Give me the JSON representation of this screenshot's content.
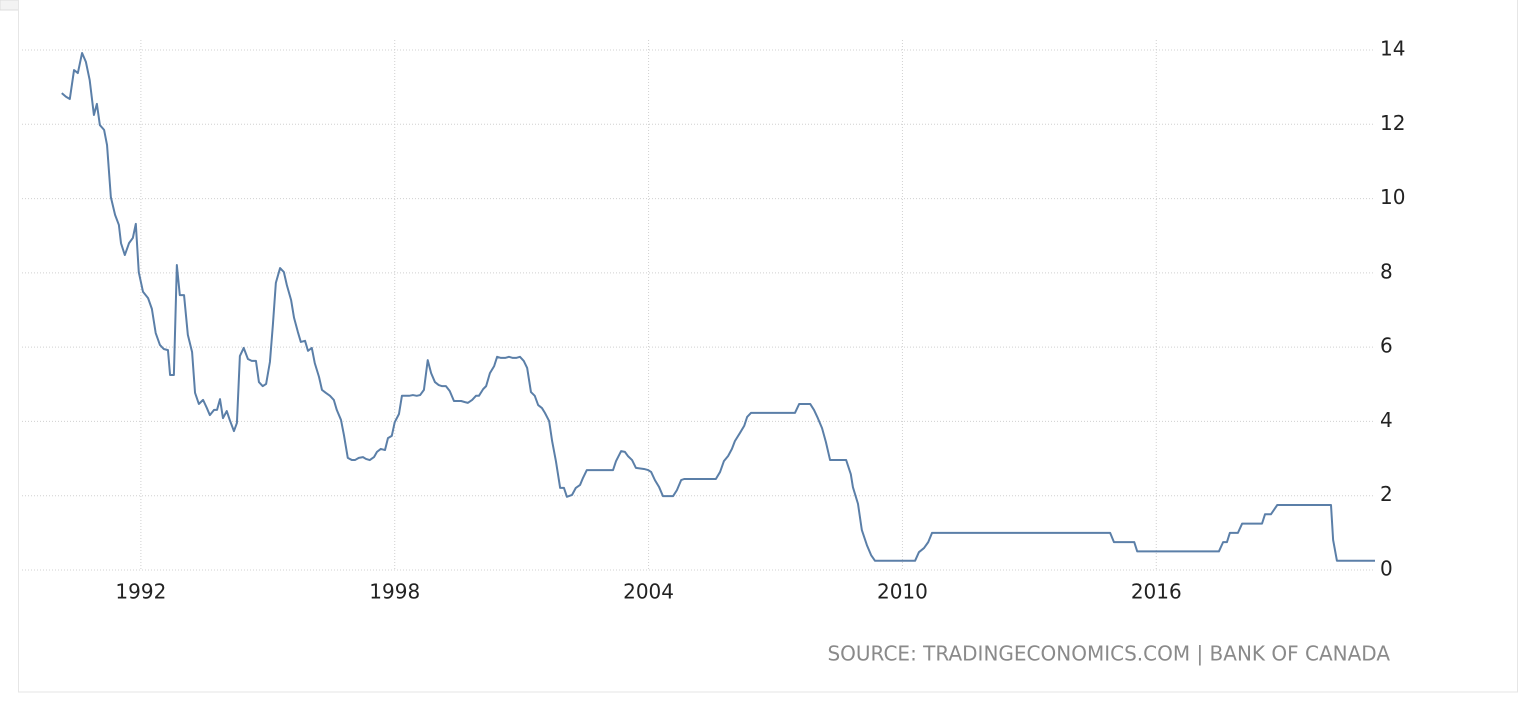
{
  "chart_data": {
    "type": "line",
    "source": "SOURCE: TRADINGECONOMICS.COM | BANK OF CANADA",
    "color": "#5b7fa8",
    "grid": true,
    "xlim": [
      1989.19,
      2021.17
    ],
    "xticks": [
      1992,
      1998,
      2004,
      2010,
      2016
    ],
    "ylim": [
      0,
      14
    ],
    "yticks": [
      0,
      2,
      4,
      6,
      8,
      10,
      12,
      14
    ],
    "x": [
      1990.13,
      1990.23,
      1990.32,
      1990.42,
      1990.51,
      1990.61,
      1990.7,
      1990.79,
      1990.89,
      1990.96,
      1991.03,
      1991.13,
      1991.2,
      1991.29,
      1991.39,
      1991.48,
      1991.53,
      1991.62,
      1991.72,
      1991.81,
      1991.88,
      1991.95,
      1992.05,
      1992.17,
      1992.26,
      1992.35,
      1992.45,
      1992.54,
      1992.64,
      1992.69,
      1992.78,
      1992.85,
      1992.92,
      1993.02,
      1993.11,
      1993.21,
      1993.28,
      1993.37,
      1993.47,
      1993.56,
      1993.63,
      1993.73,
      1993.8,
      1993.87,
      1993.94,
      1994.03,
      1994.1,
      1994.2,
      1994.27,
      1994.34,
      1994.43,
      1994.53,
      1994.62,
      1994.72,
      1994.79,
      1994.88,
      1994.96,
      1995.05,
      1995.12,
      1995.19,
      1995.29,
      1995.38,
      1995.45,
      1995.55,
      1995.62,
      1995.71,
      1995.78,
      1995.88,
      1995.95,
      1996.04,
      1996.11,
      1996.21,
      1996.28,
      1996.37,
      1996.47,
      1996.56,
      1996.63,
      1996.73,
      1996.8,
      1996.89,
      1996.99,
      1997.06,
      1997.15,
      1997.25,
      1997.32,
      1997.41,
      1997.51,
      1997.58,
      1997.67,
      1997.77,
      1997.84,
      1997.93,
      1998.0,
      1998.1,
      1998.17,
      1998.26,
      1998.34,
      1998.43,
      1998.52,
      1998.6,
      1998.69,
      1998.78,
      1998.86,
      1998.95,
      1999.04,
      1999.12,
      1999.21,
      1999.3,
      1999.4,
      1999.47,
      1999.57,
      1999.66,
      1999.73,
      1999.83,
      1999.92,
      1999.99,
      2000.09,
      2000.16,
      2000.25,
      2000.35,
      2000.42,
      2000.51,
      2000.61,
      2000.7,
      2000.79,
      2000.87,
      2000.96,
      2001.05,
      2001.13,
      2001.22,
      2001.31,
      2001.39,
      2001.48,
      2001.55,
      2001.65,
      2001.72,
      2001.81,
      2001.91,
      2002.0,
      2002.07,
      2002.19,
      2002.28,
      2002.38,
      2002.45,
      2002.54,
      2003.16,
      2003.23,
      2003.35,
      2003.44,
      2003.51,
      2003.61,
      2003.7,
      2003.89,
      2003.99,
      2004.06,
      2004.15,
      2004.25,
      2004.34,
      2004.58,
      2004.67,
      2004.77,
      2004.84,
      2005.59,
      2005.69,
      2005.78,
      2005.88,
      2005.97,
      2006.04,
      2006.16,
      2006.26,
      2006.33,
      2006.42,
      2007.46,
      2007.56,
      2007.82,
      2007.91,
      2008.0,
      2008.1,
      2008.19,
      2008.29,
      2008.67,
      2008.78,
      2008.83,
      2008.95,
      2009.04,
      2009.16,
      2009.26,
      2009.35,
      2010.3,
      2010.39,
      2010.51,
      2010.61,
      2010.7,
      2014.91,
      2015.0,
      2015.48,
      2015.55,
      2017.48,
      2017.58,
      2017.67,
      2017.74,
      2017.93,
      2018.03,
      2018.5,
      2018.57,
      2018.71,
      2018.86,
      2020.13,
      2020.18,
      2020.27,
      2021.17
    ],
    "values": [
      12.84,
      12.74,
      12.68,
      13.46,
      13.38,
      13.92,
      13.68,
      13.19,
      12.25,
      12.55,
      11.98,
      11.85,
      11.44,
      10.04,
      9.56,
      9.29,
      8.8,
      8.48,
      8.8,
      8.94,
      9.32,
      8.02,
      7.49,
      7.32,
      7.03,
      6.38,
      6.06,
      5.95,
      5.92,
      5.25,
      5.25,
      8.21,
      7.4,
      7.4,
      6.33,
      5.87,
      4.77,
      4.47,
      4.58,
      4.36,
      4.17,
      4.31,
      4.31,
      4.6,
      4.09,
      4.28,
      4.04,
      3.74,
      3.96,
      5.76,
      5.98,
      5.68,
      5.63,
      5.63,
      5.06,
      4.95,
      5.01,
      5.6,
      6.6,
      7.73,
      8.13,
      8.02,
      7.67,
      7.27,
      6.79,
      6.41,
      6.14,
      6.17,
      5.9,
      5.98,
      5.57,
      5.2,
      4.85,
      4.77,
      4.69,
      4.58,
      4.31,
      4.04,
      3.63,
      3.02,
      2.96,
      2.96,
      3.02,
      3.04,
      2.99,
      2.96,
      3.04,
      3.18,
      3.26,
      3.23,
      3.55,
      3.61,
      3.98,
      4.2,
      4.69,
      4.69,
      4.69,
      4.71,
      4.69,
      4.71,
      4.85,
      5.65,
      5.3,
      5.06,
      4.98,
      4.95,
      4.95,
      4.82,
      4.55,
      4.55,
      4.55,
      4.52,
      4.5,
      4.58,
      4.69,
      4.69,
      4.87,
      4.95,
      5.3,
      5.49,
      5.74,
      5.71,
      5.71,
      5.74,
      5.71,
      5.71,
      5.74,
      5.63,
      5.44,
      4.79,
      4.69,
      4.44,
      4.36,
      4.23,
      4.01,
      3.47,
      2.93,
      2.21,
      2.21,
      1.97,
      2.02,
      2.21,
      2.29,
      2.48,
      2.69,
      2.69,
      2.93,
      3.2,
      3.18,
      3.07,
      2.96,
      2.75,
      2.72,
      2.69,
      2.64,
      2.42,
      2.23,
      1.99,
      1.99,
      2.15,
      2.42,
      2.45,
      2.45,
      2.64,
      2.93,
      3.07,
      3.26,
      3.47,
      3.69,
      3.88,
      4.12,
      4.23,
      4.23,
      4.47,
      4.47,
      4.31,
      4.09,
      3.82,
      3.45,
      2.96,
      2.96,
      2.58,
      2.23,
      1.78,
      1.08,
      0.67,
      0.4,
      0.25,
      0.25,
      0.48,
      0.59,
      0.75,
      1,
      1,
      0.75,
      0.75,
      0.5,
      0.5,
      0.75,
      0.75,
      1,
      1,
      1.25,
      1.25,
      1.5,
      1.5,
      1.75,
      1.75,
      0.81,
      0.25,
      0.25
    ]
  }
}
